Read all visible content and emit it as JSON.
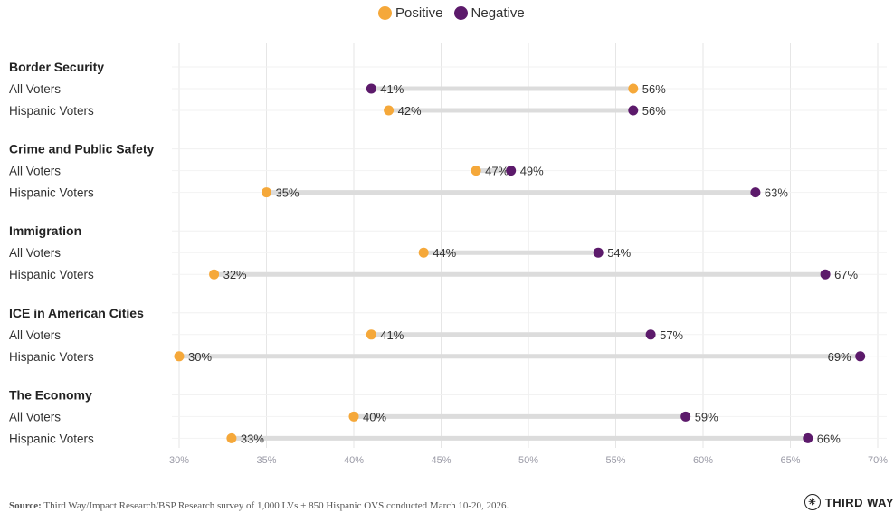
{
  "legend": {
    "positive_label": "Positive",
    "negative_label": "Negative"
  },
  "colors": {
    "positive": "#F5A83A",
    "negative": "#5C1A6B",
    "grid": "#E6E6E6",
    "connector": "#DCDCDC"
  },
  "source": {
    "prefix": "Source:",
    "text": "Third Way/Impact Research/BSP Research survey of 1,000 LVs + 850 Hispanic OVS conducted March 10-20, 2026."
  },
  "brand": {
    "name": "THIRD WAY",
    "icon": "compass-icon"
  },
  "chart_data": {
    "type": "dumbbell",
    "xlim": [
      30,
      70
    ],
    "x_ticks": [
      "30%",
      "35%",
      "40%",
      "45%",
      "50%",
      "55%",
      "60%",
      "65%",
      "70%"
    ],
    "x_tick_values": [
      30,
      35,
      40,
      45,
      50,
      55,
      60,
      65,
      70
    ],
    "series": [
      {
        "name": "Positive"
      },
      {
        "name": "Negative"
      }
    ],
    "groups": [
      {
        "title": "Border Security",
        "rows": [
          {
            "label": "All Voters",
            "positive": 56,
            "negative": 41
          },
          {
            "label": "Hispanic Voters",
            "positive": 42,
            "negative": 56
          }
        ]
      },
      {
        "title": "Crime and Public Safety",
        "rows": [
          {
            "label": "All Voters",
            "positive": 47,
            "negative": 49
          },
          {
            "label": "Hispanic Voters",
            "positive": 35,
            "negative": 63
          }
        ]
      },
      {
        "title": "Immigration",
        "rows": [
          {
            "label": "All Voters",
            "positive": 44,
            "negative": 54
          },
          {
            "label": "Hispanic Voters",
            "positive": 32,
            "negative": 67
          }
        ]
      },
      {
        "title": "ICE in American Cities",
        "rows": [
          {
            "label": "All Voters",
            "positive": 41,
            "negative": 57
          },
          {
            "label": "Hispanic Voters",
            "positive": 30,
            "negative": 69
          }
        ]
      },
      {
        "title": "The Economy",
        "rows": [
          {
            "label": "All Voters",
            "positive": 40,
            "negative": 59
          },
          {
            "label": "Hispanic Voters",
            "positive": 33,
            "negative": 66
          }
        ]
      }
    ]
  }
}
